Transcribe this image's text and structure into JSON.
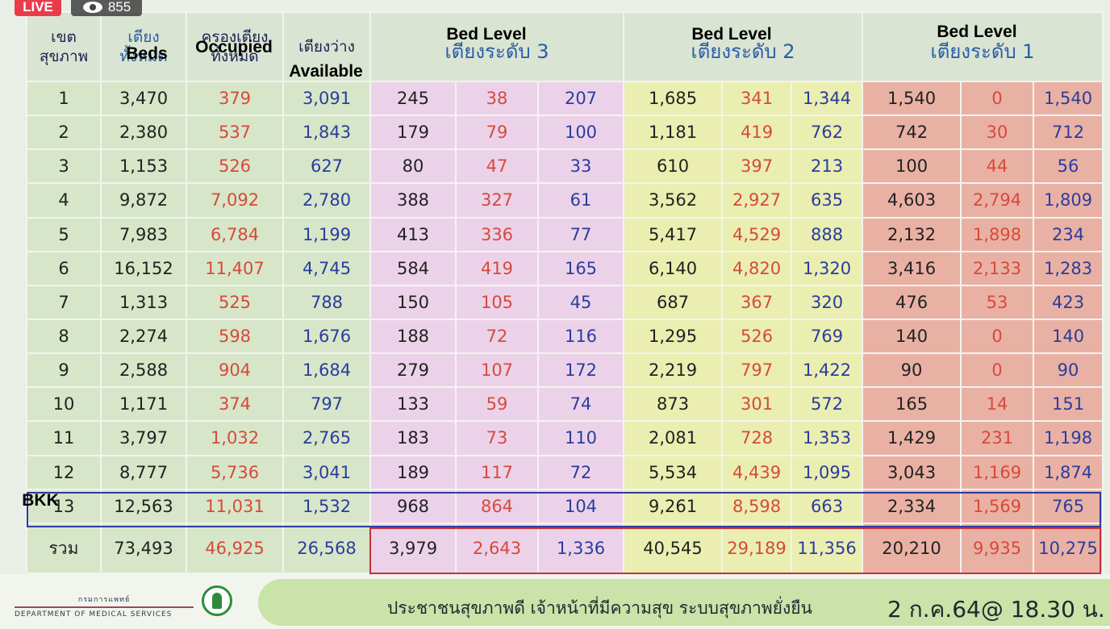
{
  "stream": {
    "live_label": "LIVE",
    "viewers": "855"
  },
  "overlays": {
    "beds": "Beds",
    "occupied": "Occupied",
    "available": "Available",
    "level3": "Bed Level",
    "level2": "Bed Level",
    "level1": "Bed Level",
    "bkk": "BKK"
  },
  "headers": {
    "region_line1": "เขต",
    "region_line2": "สุขภาพ",
    "beds_line1": "เตียง",
    "beds_line2": "ทั้งหมด",
    "occupied_line1": "ครองเตียง",
    "occupied_line2": "ทั้งหมด",
    "available": "เตียงว่าง",
    "level3": "เตียงระดับ 3",
    "level2": "เตียงระดับ 2",
    "level1": "เตียงระดับ 1"
  },
  "rows": [
    [
      "1",
      "3,470",
      "379",
      "3,091",
      "245",
      "38",
      "207",
      "1,685",
      "341",
      "1,344",
      "1,540",
      "0",
      "1,540"
    ],
    [
      "2",
      "2,380",
      "537",
      "1,843",
      "179",
      "79",
      "100",
      "1,181",
      "419",
      "762",
      "742",
      "30",
      "712"
    ],
    [
      "3",
      "1,153",
      "526",
      "627",
      "80",
      "47",
      "33",
      "610",
      "397",
      "213",
      "100",
      "44",
      "56"
    ],
    [
      "4",
      "9,872",
      "7,092",
      "2,780",
      "388",
      "327",
      "61",
      "3,562",
      "2,927",
      "635",
      "4,603",
      "2,794",
      "1,809"
    ],
    [
      "5",
      "7,983",
      "6,784",
      "1,199",
      "413",
      "336",
      "77",
      "5,417",
      "4,529",
      "888",
      "2,132",
      "1,898",
      "234"
    ],
    [
      "6",
      "16,152",
      "11,407",
      "4,745",
      "584",
      "419",
      "165",
      "6,140",
      "4,820",
      "1,320",
      "3,416",
      "2,133",
      "1,283"
    ],
    [
      "7",
      "1,313",
      "525",
      "788",
      "150",
      "105",
      "45",
      "687",
      "367",
      "320",
      "476",
      "53",
      "423"
    ],
    [
      "8",
      "2,274",
      "598",
      "1,676",
      "188",
      "72",
      "116",
      "1,295",
      "526",
      "769",
      "140",
      "0",
      "140"
    ],
    [
      "9",
      "2,588",
      "904",
      "1,684",
      "279",
      "107",
      "172",
      "2,219",
      "797",
      "1,422",
      "90",
      "0",
      "90"
    ],
    [
      "10",
      "1,171",
      "374",
      "797",
      "133",
      "59",
      "74",
      "873",
      "301",
      "572",
      "165",
      "14",
      "151"
    ],
    [
      "11",
      "3,797",
      "1,032",
      "2,765",
      "183",
      "73",
      "110",
      "2,081",
      "728",
      "1,353",
      "1,429",
      "231",
      "1,198"
    ],
    [
      "12",
      "8,777",
      "5,736",
      "3,041",
      "189",
      "117",
      "72",
      "5,534",
      "4,439",
      "1,095",
      "3,043",
      "1,169",
      "1,874"
    ],
    [
      "13",
      "12,563",
      "11,031",
      "1,532",
      "968",
      "864",
      "104",
      "9,261",
      "8,598",
      "663",
      "2,334",
      "1,569",
      "765"
    ]
  ],
  "totals": [
    "รวม",
    "73,493",
    "46,925",
    "26,568",
    "3,979",
    "2,643",
    "1,336",
    "40,545",
    "29,189",
    "11,356",
    "20,210",
    "9,935",
    "10,275"
  ],
  "footer": {
    "department_thai": "กรมการแพทย์",
    "department_en": "DEPARTMENT OF MEDICAL SERVICES",
    "slogan": "ประชาชนสุขภาพดี  เจ้าหน้าที่มีความสุข  ระบบสุขภาพยั่งยืน",
    "date": "2 ก.ค.64@ 18.30 น."
  },
  "colors": {
    "occupied": "#d64a3b",
    "available": "#2a3d9c",
    "level3_bg": "#ecd2e9",
    "level2_bg": "#eaeeb0",
    "level1_bg": "#e9b1a4",
    "bkk_outline": "#2f3aa0",
    "totals_outline": "#c8303a"
  }
}
